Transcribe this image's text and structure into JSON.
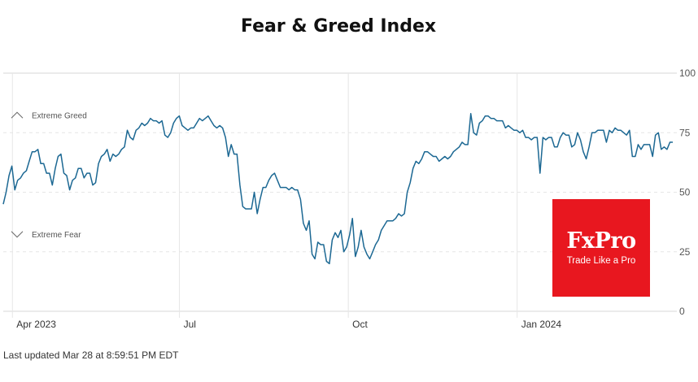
{
  "title": "Fear & Greed Index",
  "footer": "Last updated Mar 28 at 8:59:51 PM EDT",
  "logo": {
    "name": "FxPro",
    "tagline": "Trade Like a Pro",
    "bg_color": "#e8171f"
  },
  "chart_data": {
    "type": "line",
    "title": "Fear & Greed Index",
    "xlabel": "",
    "ylabel": "",
    "ylim": [
      0,
      100
    ],
    "yticks": [
      0,
      25,
      50,
      75,
      100
    ],
    "xticks": [
      "Apr 2023",
      "Jul",
      "Oct",
      "Jan 2024"
    ],
    "x_start": "2023-03-27",
    "x_end": "2024-03-28",
    "grid": true,
    "zones": [
      {
        "label": "Extreme Greed",
        "value": 75,
        "direction": "up"
      },
      {
        "label": "Extreme Fear",
        "value": 25,
        "direction": "down"
      }
    ],
    "line_color": "#1c6893",
    "series": [
      {
        "values": [
          45,
          50,
          57,
          61,
          51,
          55,
          56,
          58,
          59,
          63,
          67,
          67,
          68,
          62,
          62,
          58,
          58,
          53,
          60,
          65,
          66,
          58,
          57,
          51,
          55,
          56,
          60,
          60,
          56,
          58,
          58,
          53,
          54,
          62,
          65,
          66,
          68,
          63,
          66,
          65,
          66,
          68,
          69,
          76,
          73,
          72,
          76,
          77,
          79,
          78,
          79,
          81,
          80,
          80,
          79,
          80,
          74,
          73,
          75,
          79,
          81,
          82,
          78,
          77,
          76,
          77,
          77,
          79,
          81,
          80,
          81,
          82,
          80,
          78,
          77,
          78,
          77,
          73,
          65,
          70,
          66,
          66,
          53,
          44,
          43,
          43,
          43,
          50,
          41,
          47,
          52,
          52,
          55,
          57,
          58,
          55,
          52,
          52,
          52,
          51,
          52,
          51,
          51,
          47,
          37,
          34,
          38,
          24,
          22,
          29,
          28,
          28,
          21,
          20,
          30,
          33,
          31,
          34,
          25,
          27,
          32,
          39,
          23,
          27,
          34,
          27,
          24,
          22,
          25,
          28,
          30,
          34,
          36,
          38,
          38,
          38,
          39,
          41,
          40,
          41,
          50,
          54,
          60,
          63,
          62,
          64,
          67,
          67,
          66,
          65,
          65,
          63,
          64,
          65,
          64,
          65,
          67,
          68,
          69,
          71,
          70,
          70,
          83,
          75,
          74,
          79,
          80,
          82,
          82,
          81,
          81,
          80,
          80,
          80,
          77,
          78,
          77,
          76,
          76,
          75,
          76,
          73,
          73,
          72,
          73,
          73,
          58,
          73,
          72,
          73,
          73,
          69,
          69,
          73,
          75,
          74,
          74,
          69,
          70,
          75,
          72,
          67,
          64,
          69,
          75,
          75,
          76,
          76,
          76,
          71,
          76,
          75,
          77,
          76,
          76,
          75,
          74,
          76,
          65,
          65,
          70,
          68,
          70,
          70,
          70,
          65,
          74,
          75,
          68,
          69,
          68,
          71,
          71
        ]
      }
    ]
  }
}
